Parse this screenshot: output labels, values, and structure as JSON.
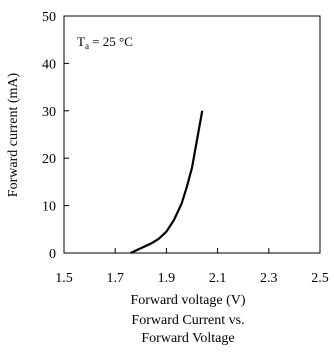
{
  "chart_data": {
    "type": "line",
    "title": "Forward Current vs.\nForward Voltage",
    "xlabel": "Forward voltage (V)",
    "ylabel": "Forward current (mA)",
    "xlim": [
      1.5,
      2.5
    ],
    "ylim": [
      0,
      50
    ],
    "x_ticks": [
      "1.5",
      "1.7",
      "1.9",
      "2.1",
      "2.3",
      "2.5"
    ],
    "y_ticks": [
      "0",
      "10",
      "20",
      "30",
      "40",
      "50"
    ],
    "grid": false,
    "annotation": {
      "base": "T",
      "subscript": "a",
      "text": " = 25 °C"
    },
    "series": [
      {
        "name": "",
        "color": "#000000",
        "x": [
          1.76,
          1.8,
          1.84,
          1.87,
          1.9,
          1.93,
          1.96,
          1.98,
          2.0,
          2.02,
          2.04
        ],
        "y": [
          0,
          1,
          2,
          3,
          4.5,
          7,
          10.5,
          14,
          18,
          24,
          30
        ]
      }
    ]
  }
}
